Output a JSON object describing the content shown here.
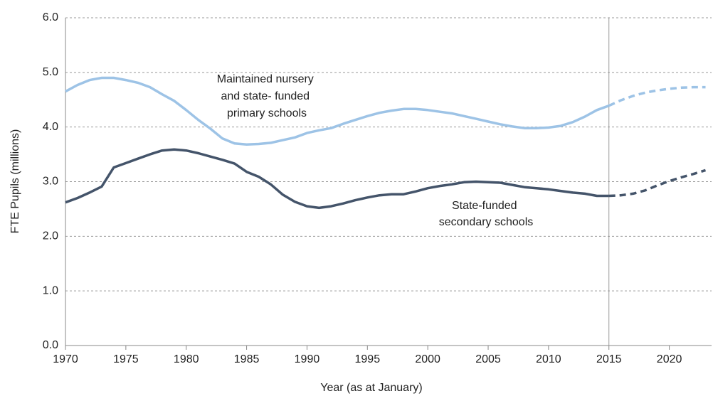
{
  "chart_data": {
    "type": "line",
    "x_label": "Year (as at January)",
    "y_label": "FTE Pupils (millions)",
    "x": [
      1970,
      1971,
      1972,
      1973,
      1974,
      1975,
      1976,
      1977,
      1978,
      1979,
      1980,
      1981,
      1982,
      1983,
      1984,
      1985,
      1986,
      1987,
      1988,
      1989,
      1990,
      1991,
      1992,
      1993,
      1994,
      1995,
      1996,
      1997,
      1998,
      1999,
      2000,
      2001,
      2002,
      2003,
      2004,
      2005,
      2006,
      2007,
      2008,
      2009,
      2010,
      2011,
      2012,
      2013,
      2014,
      2015,
      2016,
      2017,
      2018,
      2019,
      2020,
      2021,
      2022,
      2023
    ],
    "series": [
      {
        "label_lines": [
          "Maintained nursery",
          "and state- funded",
          "primary schools"
        ],
        "color": "#9dc3e6",
        "values": [
          4.65,
          4.77,
          4.86,
          4.9,
          4.9,
          4.86,
          4.81,
          4.73,
          4.6,
          4.48,
          4.31,
          4.13,
          3.97,
          3.79,
          3.7,
          3.68,
          3.69,
          3.71,
          3.76,
          3.81,
          3.89,
          3.94,
          3.98,
          4.06,
          4.13,
          4.2,
          4.26,
          4.3,
          4.33,
          4.33,
          4.31,
          4.28,
          4.25,
          4.2,
          4.15,
          4.1,
          4.05,
          4.01,
          3.98,
          3.98,
          3.99,
          4.02,
          4.09,
          4.19,
          4.31,
          4.39,
          4.49,
          4.57,
          4.63,
          4.67,
          4.7,
          4.72,
          4.73,
          4.73
        ]
      },
      {
        "label_lines": [
          "State-funded",
          "secondary schools"
        ],
        "color": "#44546a",
        "values": [
          2.62,
          2.7,
          2.8,
          2.91,
          3.26,
          3.34,
          3.42,
          3.5,
          3.57,
          3.59,
          3.57,
          3.52,
          3.46,
          3.4,
          3.33,
          3.18,
          3.09,
          2.95,
          2.76,
          2.63,
          2.55,
          2.52,
          2.55,
          2.6,
          2.66,
          2.71,
          2.75,
          2.77,
          2.77,
          2.82,
          2.88,
          2.92,
          2.95,
          2.99,
          3.0,
          2.99,
          2.98,
          2.94,
          2.9,
          2.88,
          2.86,
          2.83,
          2.8,
          2.78,
          2.74,
          2.74,
          2.75,
          2.78,
          2.84,
          2.93,
          3.01,
          3.08,
          3.14,
          3.21
        ]
      }
    ],
    "projection_start": 2015,
    "xlim": [
      1970,
      2023.5
    ],
    "xticks": [
      1970,
      1975,
      1980,
      1985,
      1990,
      1995,
      2000,
      2005,
      2010,
      2015,
      2020
    ],
    "ylim": [
      0,
      6
    ],
    "yticks": [
      {
        "value": 0,
        "label": "0.0"
      },
      {
        "value": 1,
        "label": "1.0"
      },
      {
        "value": 2,
        "label": "2.0"
      },
      {
        "value": 3,
        "label": "3.0"
      },
      {
        "value": 4,
        "label": "4.0"
      },
      {
        "value": 5,
        "label": "5.0"
      },
      {
        "value": 6,
        "label": "6.0"
      }
    ],
    "grid": true
  }
}
